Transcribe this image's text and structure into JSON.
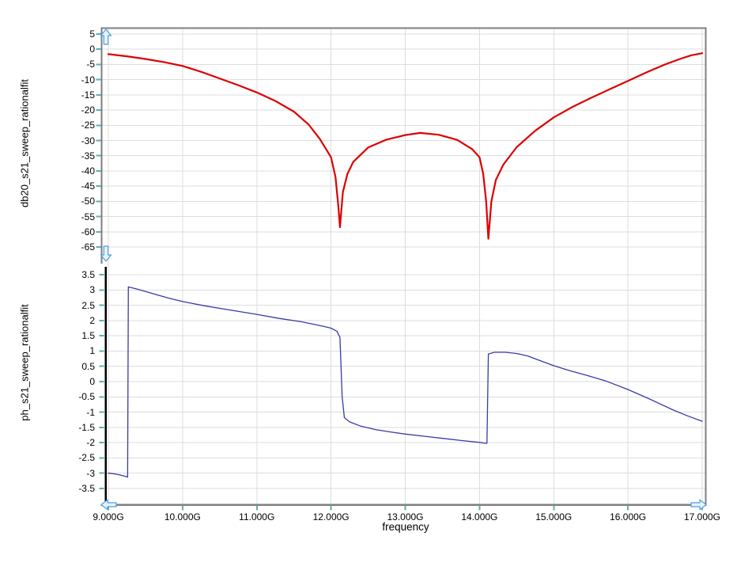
{
  "figure": {
    "x_axis_label": "frequency",
    "top_plot": {
      "y_axis_label": "db20_s21_sweep_rationalfit"
    },
    "bottom_plot": {
      "y_axis_label": "ph_s21_sweep_rationalfit"
    }
  },
  "colors": {
    "trace_db20": "#dd0000",
    "trace_ph": "#3a3aa8",
    "grid": "#dddddd",
    "frame": "#7f7f7f",
    "secondary_axis": "#000000",
    "tick": "#58b2b2",
    "scroll_arrow_stroke": "#4f9bdc",
    "scroll_arrow_fill": "#e6f3ff",
    "text": "#000000",
    "background": "#ffffff"
  },
  "chart_data": [
    {
      "type": "line",
      "title": "db20_s21_sweep_rationalfit vs frequency",
      "xlabel": "frequency",
      "ylabel": "db20_s21_sweep_rationalfit",
      "x_unit": "GHz",
      "xlim": [
        9,
        17
      ],
      "ylim": [
        -65,
        5
      ],
      "grid": true,
      "legend_position": "none",
      "x_tick_values": [
        9,
        10,
        11,
        12,
        13,
        14,
        15,
        16,
        17
      ],
      "x_tick_labels": [
        "9.000G",
        "10.000G",
        "11.000G",
        "12.000G",
        "13.000G",
        "14.000G",
        "15.000G",
        "16.000G",
        "17.000G"
      ],
      "y_tick_values": [
        5,
        0,
        -5,
        -10,
        -15,
        -20,
        -25,
        -30,
        -35,
        -40,
        -45,
        -50,
        -55,
        -60,
        -65
      ],
      "y_tick_labels": [
        "5",
        "0",
        "-5",
        "-10",
        "-15",
        "-20",
        "-25",
        "-30",
        "-35",
        "-40",
        "-45",
        "-50",
        "-55",
        "-60",
        "-65"
      ],
      "series": [
        {
          "name": "db20_s21_sweep_rationalfit",
          "color": "#dd0000",
          "points": [
            [
              9.0,
              -1.6
            ],
            [
              9.25,
              -2.3
            ],
            [
              9.5,
              -3.2
            ],
            [
              9.75,
              -4.2
            ],
            [
              10.0,
              -5.5
            ],
            [
              10.25,
              -7.4
            ],
            [
              10.5,
              -9.6
            ],
            [
              10.75,
              -11.8
            ],
            [
              11.0,
              -14.2
            ],
            [
              11.25,
              -17.0
            ],
            [
              11.5,
              -20.5
            ],
            [
              11.7,
              -24.8
            ],
            [
              11.85,
              -29.5
            ],
            [
              12.0,
              -35.5
            ],
            [
              12.06,
              -42.0
            ],
            [
              12.1,
              -52.0
            ],
            [
              12.12,
              -58.5
            ],
            [
              12.16,
              -47.0
            ],
            [
              12.22,
              -41.0
            ],
            [
              12.3,
              -37.0
            ],
            [
              12.5,
              -32.3
            ],
            [
              12.75,
              -29.7
            ],
            [
              13.0,
              -28.2
            ],
            [
              13.2,
              -27.5
            ],
            [
              13.45,
              -28.1
            ],
            [
              13.7,
              -29.8
            ],
            [
              13.9,
              -32.8
            ],
            [
              14.0,
              -35.5
            ],
            [
              14.05,
              -41.0
            ],
            [
              14.09,
              -50.0
            ],
            [
              14.12,
              -62.3
            ],
            [
              14.16,
              -50.0
            ],
            [
              14.22,
              -43.0
            ],
            [
              14.32,
              -38.0
            ],
            [
              14.5,
              -32.2
            ],
            [
              14.75,
              -26.8
            ],
            [
              15.0,
              -22.4
            ],
            [
              15.25,
              -19.0
            ],
            [
              15.5,
              -16.0
            ],
            [
              15.75,
              -13.2
            ],
            [
              16.0,
              -10.4
            ],
            [
              16.25,
              -7.6
            ],
            [
              16.5,
              -5.0
            ],
            [
              16.7,
              -3.2
            ],
            [
              16.85,
              -2.0
            ],
            [
              17.0,
              -1.3
            ]
          ]
        }
      ]
    },
    {
      "type": "line",
      "title": "ph_s21_sweep_rationalfit vs frequency",
      "xlabel": "frequency",
      "ylabel": "ph_s21_sweep_rationalfit",
      "x_unit": "GHz",
      "xlim": [
        9,
        17
      ],
      "ylim": [
        -3.5,
        3.5
      ],
      "grid": true,
      "legend_position": "none",
      "x_tick_values": [
        9,
        10,
        11,
        12,
        13,
        14,
        15,
        16,
        17
      ],
      "x_tick_labels": [
        "9.000G",
        "10.000G",
        "11.000G",
        "12.000G",
        "13.000G",
        "14.000G",
        "15.000G",
        "16.000G",
        "17.000G"
      ],
      "y_tick_values": [
        3.5,
        3,
        2.5,
        2,
        1.5,
        1,
        0.5,
        0,
        -0.5,
        -1,
        -1.5,
        -2,
        -2.5,
        -3,
        -3.5
      ],
      "y_tick_labels": [
        "3.5",
        "3",
        "2.5",
        "2",
        "1.5",
        "1",
        "0.5",
        "0",
        "-0.5",
        "-1",
        "-1.5",
        "-2",
        "-2.5",
        "-3",
        "-3.5"
      ],
      "series": [
        {
          "name": "ph_s21_sweep_rationalfit",
          "color": "#3a3aa8",
          "points": [
            [
              9.0,
              -3.0
            ],
            [
              9.08,
              -3.02
            ],
            [
              9.16,
              -3.06
            ],
            [
              9.24,
              -3.11
            ],
            [
              9.26,
              -3.13
            ],
            [
              9.27,
              3.1
            ],
            [
              9.4,
              3.02
            ],
            [
              9.6,
              2.88
            ],
            [
              9.8,
              2.74
            ],
            [
              10.0,
              2.62
            ],
            [
              10.3,
              2.48
            ],
            [
              10.6,
              2.36
            ],
            [
              11.0,
              2.2
            ],
            [
              11.3,
              2.07
            ],
            [
              11.6,
              1.96
            ],
            [
              11.9,
              1.81
            ],
            [
              12.0,
              1.75
            ],
            [
              12.08,
              1.65
            ],
            [
              12.12,
              1.45
            ],
            [
              12.15,
              -0.5
            ],
            [
              12.18,
              -1.18
            ],
            [
              12.25,
              -1.32
            ],
            [
              12.4,
              -1.46
            ],
            [
              12.6,
              -1.57
            ],
            [
              12.8,
              -1.65
            ],
            [
              13.0,
              -1.72
            ],
            [
              13.25,
              -1.79
            ],
            [
              13.5,
              -1.86
            ],
            [
              13.75,
              -1.93
            ],
            [
              14.0,
              -1.99
            ],
            [
              14.08,
              -2.02
            ],
            [
              14.1,
              -2.02
            ],
            [
              14.12,
              0.9
            ],
            [
              14.2,
              0.96
            ],
            [
              14.35,
              0.96
            ],
            [
              14.5,
              0.92
            ],
            [
              14.65,
              0.84
            ],
            [
              14.8,
              0.7
            ],
            [
              15.0,
              0.52
            ],
            [
              15.2,
              0.37
            ],
            [
              15.45,
              0.2
            ],
            [
              15.7,
              0.02
            ],
            [
              16.0,
              -0.26
            ],
            [
              16.3,
              -0.58
            ],
            [
              16.6,
              -0.92
            ],
            [
              16.8,
              -1.12
            ],
            [
              17.0,
              -1.3
            ]
          ]
        }
      ]
    }
  ]
}
